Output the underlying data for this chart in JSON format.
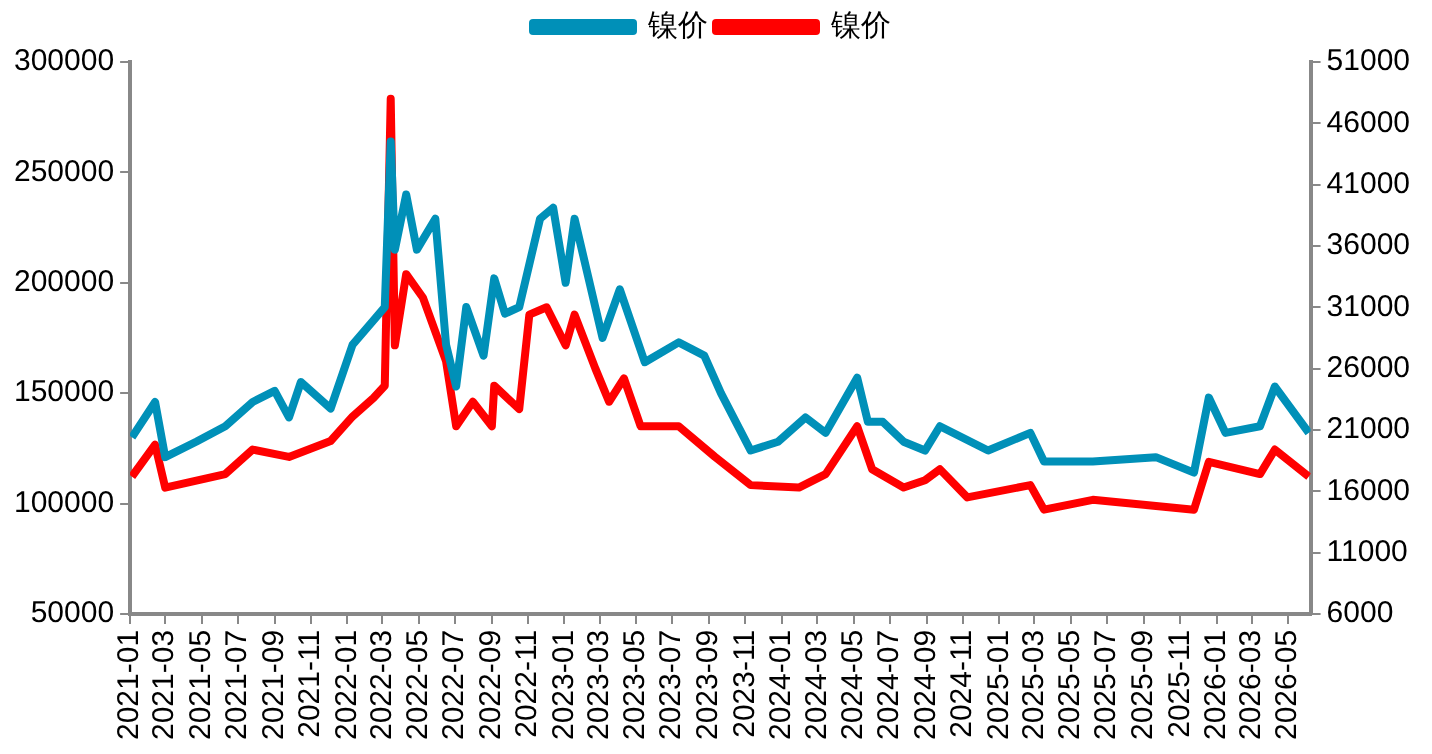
{
  "chart_data": {
    "type": "line",
    "legend": "top",
    "grid": false,
    "marker": "none",
    "line_style": "solid",
    "xlim": [
      "2021-01-01",
      "2026-06-08"
    ],
    "xticks": [
      "2021-01",
      "2021-03",
      "2021-05",
      "2021-07",
      "2021-09",
      "2021-11",
      "2022-01",
      "2022-03",
      "2022-05",
      "2022-07",
      "2022-09",
      "2022-11",
      "2023-01",
      "2023-03",
      "2023-05",
      "2023-07",
      "2023-09",
      "2023-11",
      "2024-01",
      "2024-03",
      "2024-05",
      "2024-07",
      "2024-09",
      "2024-11",
      "2025-01",
      "2025-03",
      "2025-05",
      "2025-07",
      "2025-09",
      "2025-11",
      "2026-01",
      "2026-03",
      "2026-05"
    ],
    "ylim": [
      50000,
      300000
    ],
    "yticks": [
      50000,
      100000,
      150000,
      200000,
      250000,
      300000
    ],
    "y2lim": [
      6000,
      51000
    ],
    "y2ticks": [
      6000,
      11000,
      16000,
      21000,
      26000,
      31000,
      36000,
      41000,
      46000,
      51000
    ],
    "series": [
      {
        "name": "镍价",
        "color": "#0090b8",
        "x": [
          "2021-01-04",
          "2021-02-12",
          "2021-03-01",
          "2021-04-22",
          "2021-06-10",
          "2021-07-26",
          "2021-09-01",
          "2021-09-25",
          "2021-10-15",
          "2021-12-04",
          "2022-01-10",
          "2022-02-14",
          "2022-03-05",
          "2022-03-15",
          "2022-03-22",
          "2022-04-10",
          "2022-04-28",
          "2022-05-29",
          "2022-06-16",
          "2022-07-03",
          "2022-07-20",
          "2022-08-18",
          "2022-09-05",
          "2022-09-23",
          "2022-10-17",
          "2022-11-21",
          "2022-12-13",
          "2023-01-03",
          "2023-01-18",
          "2023-03-06",
          "2023-04-04",
          "2023-05-16",
          "2023-07-12",
          "2023-08-24",
          "2023-09-21",
          "2023-11-10",
          "2023-12-26",
          "2024-02-10",
          "2024-03-15",
          "2024-05-07",
          "2024-05-25",
          "2024-06-19",
          "2024-07-24",
          "2024-08-29",
          "2024-09-23",
          "2024-12-13",
          "2025-02-22",
          "2025-03-17",
          "2025-06-07",
          "2025-09-21",
          "2025-11-24",
          "2025-12-19",
          "2026-01-16",
          "2026-03-15",
          "2026-04-09",
          "2026-06-05"
        ],
        "values": [
          130000,
          146000,
          121000,
          128000,
          135000,
          146000,
          151000,
          139000,
          155000,
          143000,
          172000,
          183000,
          189000,
          264000,
          215000,
          240000,
          215000,
          229000,
          172000,
          153000,
          189000,
          167000,
          202000,
          186000,
          189000,
          229000,
          234000,
          200000,
          229000,
          175000,
          197000,
          164000,
          173000,
          167000,
          150000,
          124000,
          128000,
          139000,
          132000,
          157000,
          137000,
          137000,
          128000,
          124000,
          135000,
          124000,
          132000,
          119000,
          119000,
          121000,
          114000,
          148000,
          132000,
          135000,
          153000,
          132000
        ]
      },
      {
        "name": "镍价",
        "color": "#ff0000",
        "axis": "y2",
        "x": [
          "2021-01-04",
          "2021-02-12",
          "2021-03-01",
          "2021-06-10",
          "2021-07-26",
          "2021-09-25",
          "2021-12-04",
          "2022-01-10",
          "2022-02-14",
          "2022-03-05",
          "2022-03-15",
          "2022-03-22",
          "2022-04-10",
          "2022-05-08",
          "2022-06-16",
          "2022-07-03",
          "2022-07-31",
          "2022-09-01",
          "2022-09-05",
          "2022-10-17",
          "2022-11-03",
          "2022-12-02",
          "2023-01-03",
          "2023-01-18",
          "2023-02-22",
          "2023-03-17",
          "2023-04-11",
          "2023-05-09",
          "2023-07-12",
          "2023-09-11",
          "2023-11-10",
          "2024-01-30",
          "2024-03-15",
          "2024-05-07",
          "2024-06-01",
          "2024-07-24",
          "2024-08-29",
          "2024-09-23",
          "2024-11-08",
          "2025-02-22",
          "2025-03-17",
          "2025-06-07",
          "2025-11-24",
          "2025-12-19",
          "2026-03-15",
          "2026-04-09",
          "2026-06-05"
        ],
        "values": [
          17200,
          19800,
          16300,
          17400,
          19400,
          18800,
          20100,
          22100,
          23600,
          24600,
          48000,
          27900,
          33700,
          31800,
          26600,
          21300,
          23300,
          21300,
          24600,
          22700,
          30400,
          31000,
          27900,
          30400,
          26000,
          23300,
          25200,
          21300,
          21300,
          18800,
          16500,
          16300,
          17400,
          21300,
          17800,
          16300,
          16900,
          17800,
          15500,
          16500,
          14500,
          15300,
          14500,
          18400,
          17400,
          19400,
          17200
        ]
      }
    ]
  }
}
